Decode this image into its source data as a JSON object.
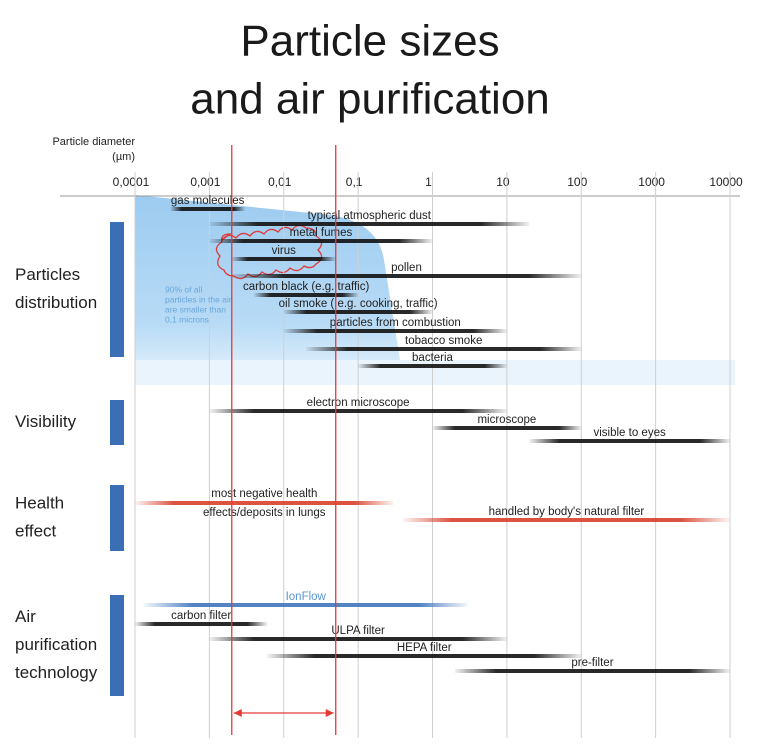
{
  "chart_data": {
    "type": "range",
    "title": [
      "Particle sizes",
      "and air purification"
    ],
    "x_label": [
      "Particle diameter",
      "(µm)"
    ],
    "log_x": true,
    "grid": true,
    "xlim": [
      0.0001,
      10000
    ],
    "xticks": [
      {
        "value": 0.0001,
        "label": "0,0001"
      },
      {
        "value": 0.001,
        "label": "0,001"
      },
      {
        "value": 0.01,
        "label": "0,01"
      },
      {
        "value": 0.1,
        "label": "0,1"
      },
      1,
      10,
      100,
      1000,
      10000
    ],
    "note": [
      "90% of all",
      "particles in the air",
      "are smaller than",
      "0,1 microns"
    ],
    "highlight_range": [
      0.002,
      0.05
    ],
    "groups": [
      {
        "name": [
          "Particles",
          "distribution"
        ],
        "bars": [
          {
            "label": "gas molecules",
            "start": 0.0003,
            "end": 0.003,
            "color": "#111111"
          },
          {
            "label": "typical atmospheric dust",
            "start": 0.001,
            "end": 20,
            "color": "#111111"
          },
          {
            "label": "metal fumes",
            "start": 0.001,
            "end": 1,
            "color": "#111111"
          },
          {
            "label": "virus",
            "start": 0.002,
            "end": 0.05,
            "color": "#111111"
          },
          {
            "label": "pollen",
            "start": 0.002,
            "end": 100,
            "color": "#111111"
          },
          {
            "label": "carbon black (e.g. traffic)",
            "start": 0.004,
            "end": 0.1,
            "color": "#111111"
          },
          {
            "label": "oil smoke ( e.g. cooking, traffic)",
            "start": 0.01,
            "end": 1,
            "color": "#111111"
          },
          {
            "label": "particles from combustion",
            "start": 0.01,
            "end": 10,
            "color": "#111111"
          },
          {
            "label": "tobacco smoke",
            "start": 0.02,
            "end": 100,
            "color": "#111111"
          },
          {
            "label": "bacteria",
            "start": 0.1,
            "end": 10,
            "color": "#111111"
          }
        ]
      },
      {
        "name": [
          "Visibility"
        ],
        "bars": [
          {
            "label": "electron microscope",
            "start": 0.001,
            "end": 10,
            "color": "#111111"
          },
          {
            "label": "microscope",
            "start": 1,
            "end": 100,
            "color": "#111111"
          },
          {
            "label": "visible to eyes",
            "start": 20,
            "end": 10000,
            "color": "#111111"
          }
        ]
      },
      {
        "name": [
          "Health",
          "effect"
        ],
        "bars": [
          {
            "label": [
              "most negative health",
              "effects/deposits in lungs"
            ],
            "start": 0.0001,
            "end": 0.3,
            "color": "#d8402a"
          },
          {
            "label": "handled by body's natural filter",
            "start": 0.4,
            "end": 10000,
            "color": "#d8402a"
          }
        ]
      },
      {
        "name": [
          "Air",
          "purification",
          "technology"
        ],
        "bars": [
          {
            "label": "IonFlow",
            "start": 0.00013,
            "end": 3,
            "color": "#3f76be"
          },
          {
            "label": "carbon filter",
            "start": 0.0001,
            "end": 0.006,
            "color": "#111111"
          },
          {
            "label": "ULPA filter",
            "start": 0.001,
            "end": 10,
            "color": "#111111"
          },
          {
            "label": "HEPA filter",
            "start": 0.006,
            "end": 100,
            "color": "#111111"
          },
          {
            "label": "pre-filter",
            "start": 2,
            "end": 10000,
            "color": "#111111"
          }
        ]
      }
    ]
  }
}
